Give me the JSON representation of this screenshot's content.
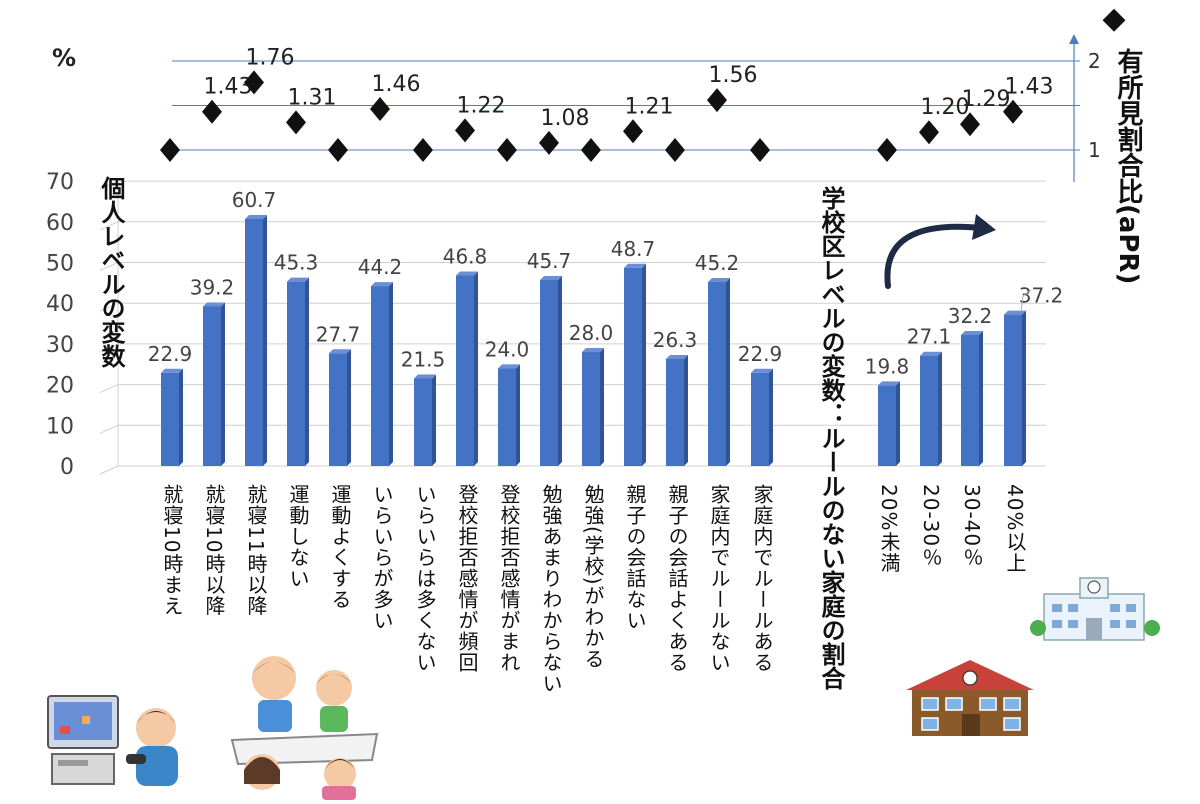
{
  "chart_data": {
    "type": "bar",
    "y_unit_label": "%",
    "ylim": [
      0,
      70
    ],
    "yticks": [
      0,
      10,
      20,
      30,
      40,
      50,
      60,
      70
    ],
    "group_titles": {
      "individual": "個人レベルの変数",
      "school": "学校区レベルの変数：ルールのない家庭の割合"
    },
    "right_axis": {
      "legend_marker": "◆",
      "label": "有所見割合比(aPR)",
      "ticks": [
        1,
        2
      ]
    },
    "categories": [
      "就寝10時まえ",
      "就寝10時以降",
      "就寝11時以降",
      "運動しない",
      "運動よくする",
      "いらいらが多い",
      "いらいらは多くない",
      "登校拒否感情が頻回",
      "登校拒否感情がまれ",
      "勉強あまりわからない",
      "勉強(学校)がわかる",
      "親子の会話ない",
      "親子の会話よくある",
      "家庭内でルールない",
      "家庭内でルールある",
      "20%未満",
      "20-30％",
      "30-40％",
      "40%以上"
    ],
    "values": [
      22.9,
      39.2,
      60.7,
      45.3,
      27.7,
      44.2,
      21.5,
      46.8,
      24.0,
      45.7,
      28.0,
      48.7,
      26.3,
      45.2,
      22.9,
      19.8,
      27.1,
      32.2,
      37.2
    ],
    "value_labels": [
      "22.9",
      "39.2",
      "60.7",
      "45.3",
      "27.7",
      "44.2",
      "21.5",
      "46.8",
      "24.0",
      "45.7",
      "28.0",
      "48.7",
      "26.3",
      "45.2",
      "22.9",
      "19.8",
      "27.1",
      "32.2",
      "37.2"
    ],
    "apr_values": [
      1.0,
      1.43,
      1.76,
      1.31,
      1.0,
      1.46,
      1.0,
      1.22,
      1.0,
      1.08,
      1.0,
      1.21,
      1.0,
      1.56,
      1.0,
      1.0,
      1.2,
      1.29,
      1.43
    ],
    "apr_labels": [
      "",
      "1.43",
      "1.76",
      "1.31",
      "",
      "1.46",
      "",
      "1.22",
      "",
      "1.08",
      "",
      "1.21",
      "",
      "1.56",
      "",
      "",
      "1.20",
      "1.29",
      "1.43"
    ],
    "colors": {
      "bar": "#4472C4",
      "bar_dark": "#2F5597",
      "grid": "#D0D0D0",
      "apr_grid": "#4A7FC0",
      "arrow": "#1F2A44"
    }
  }
}
